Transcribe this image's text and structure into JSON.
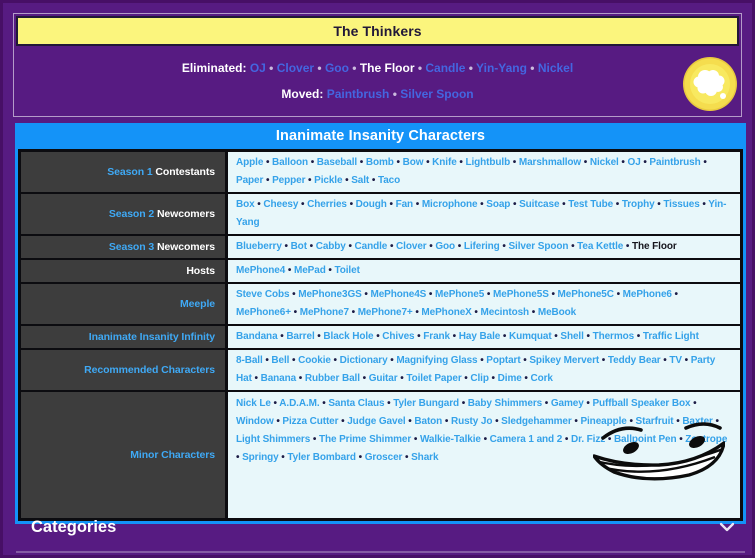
{
  "top_box": {
    "title": "The Thinkers",
    "lines": [
      {
        "id": "eliminated",
        "label": "Eliminated:",
        "items": [
          "OJ",
          "Clover",
          "Goo",
          {
            "text": "The Floor",
            "type": "bold"
          },
          "Candle",
          "Yin-Yang",
          "Nickel"
        ]
      },
      {
        "id": "moved",
        "label": "Moved:",
        "items": [
          "Paintbrush",
          "Silver Spoon"
        ]
      }
    ],
    "icon": "thought-bubble-coin-icon"
  },
  "navbox": {
    "title": "Inanimate Insanity Characters",
    "rows": [
      {
        "id": "season-1-contestants",
        "label_parts": [
          {
            "text": "Season 1",
            "type": "link"
          },
          {
            "text": "Contestants",
            "type": "plain"
          }
        ],
        "items": [
          "Apple",
          "Balloon",
          "Baseball",
          "Bomb",
          "Bow",
          "Knife",
          "Lightbulb",
          "Marshmallow",
          "Nickel",
          "OJ",
          "Paintbrush",
          "Paper",
          "Pepper",
          "Pickle",
          "Salt",
          "Taco"
        ]
      },
      {
        "id": "season-2-newcomers",
        "label_parts": [
          {
            "text": "Season 2",
            "type": "link"
          },
          {
            "text": "Newcomers",
            "type": "plain"
          }
        ],
        "items": [
          "Box",
          "Cheesy",
          "Cherries",
          "Dough",
          "Fan",
          "Microphone",
          "Soap",
          "Suitcase",
          "Test Tube",
          "Trophy",
          "Tissues",
          "Yin-Yang"
        ]
      },
      {
        "id": "season-3-newcomers",
        "label_parts": [
          {
            "text": "Season 3",
            "type": "link"
          },
          {
            "text": "Newcomers",
            "type": "plain"
          }
        ],
        "items": [
          "Blueberry",
          "Bot",
          "Cabby",
          "Candle",
          "Clover",
          "Goo",
          "Lifering",
          "Silver Spoon",
          "Tea Kettle",
          {
            "text": "The Floor",
            "type": "bold"
          }
        ]
      },
      {
        "id": "hosts",
        "label_parts": [
          {
            "text": "Hosts",
            "type": "plain"
          }
        ],
        "items": [
          "MePhone4",
          "MePad",
          "Toilet"
        ]
      },
      {
        "id": "meeple",
        "label_parts": [
          {
            "text": "Meeple",
            "type": "link"
          }
        ],
        "items": [
          "Steve Cobs",
          "MePhone3GS",
          "MePhone4S",
          "MePhone5",
          "MePhone5S",
          "MePhone5C",
          "MePhone6",
          "MePhone6+",
          "MePhone7",
          "MePhone7+",
          "MePhoneX",
          "Mecintosh",
          "MeBook"
        ]
      },
      {
        "id": "inanimate-insanity-infinity",
        "label_parts": [
          {
            "text": "Inanimate Insanity Infinity",
            "type": "link"
          }
        ],
        "items": [
          "Bandana",
          "Barrel",
          "Black Hole",
          "Chives",
          "Frank",
          "Hay Bale",
          "Kumquat",
          "Shell",
          "Thermos",
          "Traffic Light"
        ]
      },
      {
        "id": "recommended-characters",
        "label_parts": [
          {
            "text": "Recommended Characters",
            "type": "link"
          }
        ],
        "items": [
          "8-Ball",
          "Bell",
          "Cookie",
          "Dictionary",
          "Magnifying Glass",
          "Poptart",
          "Spikey Mervert",
          "Teddy Bear",
          "TV",
          "Party Hat",
          "Banana",
          "Rubber Ball",
          "Guitar",
          "Toilet Paper",
          "Clip",
          "Dime",
          "Cork"
        ]
      },
      {
        "id": "minor-characters",
        "label_parts": [
          {
            "text": "Minor Characters",
            "type": "link"
          }
        ],
        "items": [
          "Nick Le",
          "A.D.A.M.",
          "Santa Claus",
          "Tyler Bungard",
          "Baby Shimmers",
          "Gamey",
          "Puffball Speaker Box",
          "Window",
          "Pizza Cutter",
          "Judge Gavel",
          "Baton",
          "Rusty Jo",
          "Sledgehammer",
          "Pineapple",
          "Starfruit",
          "Baxter",
          "Light Shimmers",
          "The Prime Shimmer",
          "Walkie-Talkie",
          "Camera 1 and 2",
          "Dr. Fizz",
          "Ballpoint Pen",
          "Zoetrope",
          "Springy",
          "Tyler Bombard",
          "Groscer",
          "Shark"
        ]
      }
    ],
    "doodle_icon": "smile-doodle-icon"
  },
  "footer": {
    "categories_label": "Categories",
    "chevron_icon": "chevron-down-icon"
  },
  "separator": "•",
  "colors": {
    "page_purple": "#571b82",
    "banner_yellow": "#fbf57d",
    "navbox_blue": "#1493f8",
    "label_cell_dark": "#3d3d3d",
    "content_cell_light": "#e8f7fa",
    "content_link_blue": "#35a2e9",
    "label_link_blue": "#3fa9f5",
    "top_link_blue": "#4466e0",
    "coin_yellow": "#f5dd4e"
  }
}
